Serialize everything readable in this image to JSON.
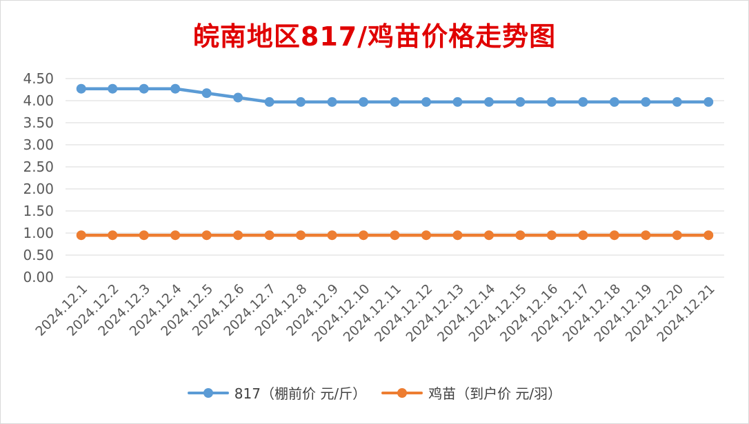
{
  "chart_data": {
    "type": "line",
    "title": "皖南地区817/鸡苗价格走势图",
    "categories": [
      "2024.12.1",
      "2024.12.2",
      "2024.12.3",
      "2024.12.4",
      "2024.12.5",
      "2024.12.6",
      "2024.12.7",
      "2024.12.8",
      "2024.12.9",
      "2024.12.10",
      "2024.12.11",
      "2024.12.12",
      "2024.12.13",
      "2024.12.14",
      "2024.12.15",
      "2024.12.16",
      "2024.12.17",
      "2024.12.18",
      "2024.12.19",
      "2024.12.20",
      "2024.12.21"
    ],
    "series": [
      {
        "name": "817（棚前价 元/斤）",
        "color": "#5b9bd5",
        "values": [
          4.27,
          4.27,
          4.27,
          4.27,
          4.17,
          4.07,
          3.97,
          3.97,
          3.97,
          3.97,
          3.97,
          3.97,
          3.97,
          3.97,
          3.97,
          3.97,
          3.97,
          3.97,
          3.97,
          3.97,
          3.97
        ]
      },
      {
        "name": "鸡苗（到户价 元/羽）",
        "color": "#ed7d31",
        "values": [
          0.95,
          0.95,
          0.95,
          0.95,
          0.95,
          0.95,
          0.95,
          0.95,
          0.95,
          0.95,
          0.95,
          0.95,
          0.95,
          0.95,
          0.95,
          0.95,
          0.95,
          0.95,
          0.95,
          0.95,
          0.95
        ]
      }
    ],
    "yticks": [
      "0.00",
      "0.50",
      "1.00",
      "1.50",
      "2.00",
      "2.50",
      "3.00",
      "3.50",
      "4.00",
      "4.50"
    ],
    "ylim": [
      0,
      4.5
    ],
    "grid": true,
    "legend_position": "bottom"
  }
}
